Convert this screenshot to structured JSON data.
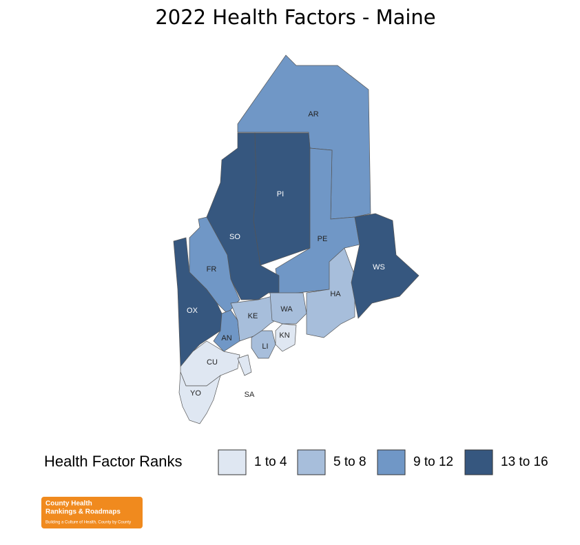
{
  "title": "2022 Health Factors - Maine",
  "legend": {
    "title": "Health Factor Ranks",
    "items": [
      {
        "label": "1 to 4",
        "color": "#dfe7f2"
      },
      {
        "label": "5 to 8",
        "color": "#a7bedb"
      },
      {
        "label": "9 to 12",
        "color": "#7097c6"
      },
      {
        "label": "13 to 16",
        "color": "#36577f"
      }
    ]
  },
  "counties": [
    {
      "label": "AR",
      "color": "#7097c6"
    },
    {
      "label": "PI",
      "color": "#36577f"
    },
    {
      "label": "PE",
      "color": "#7097c6"
    },
    {
      "label": "SO",
      "color": "#36577f"
    },
    {
      "label": "FR",
      "color": "#7097c6"
    },
    {
      "label": "OX",
      "color": "#36577f"
    },
    {
      "label": "AN",
      "color": "#7097c6"
    },
    {
      "label": "KE",
      "color": "#a7bedb"
    },
    {
      "label": "WA",
      "color": "#a7bedb"
    },
    {
      "label": "HA",
      "color": "#a7bedb"
    },
    {
      "label": "WS",
      "color": "#36577f"
    },
    {
      "label": "LI",
      "color": "#a7bedb"
    },
    {
      "label": "KN",
      "color": "#dfe7f2"
    },
    {
      "label": "CU",
      "color": "#dfe7f2"
    },
    {
      "label": "SA",
      "color": "#dfe7f2"
    },
    {
      "label": "YO",
      "color": "#dfe7f2"
    }
  ],
  "logo": {
    "line1": "County Health",
    "line2": "Rankings & Roadmaps",
    "tagline": "Building a Culture of Health, County by County"
  }
}
